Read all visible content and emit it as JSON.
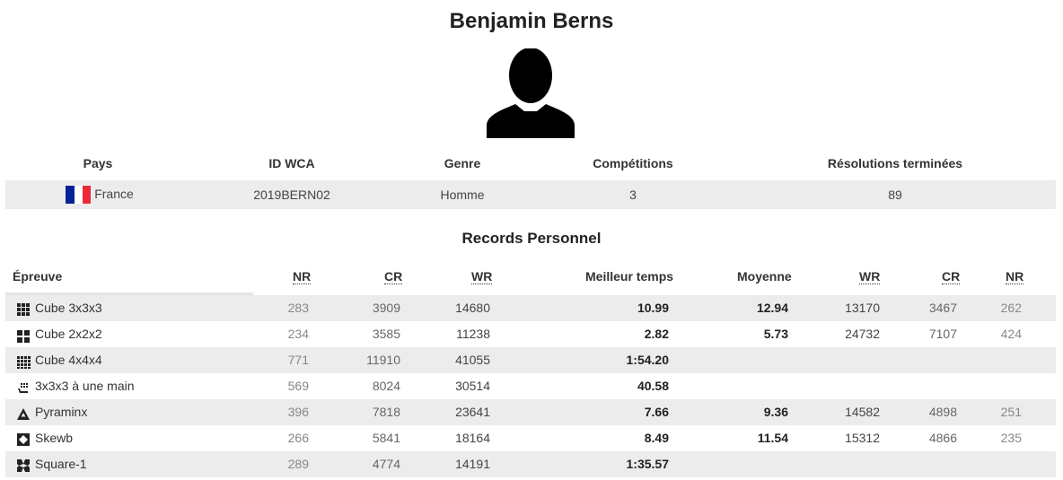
{
  "person": {
    "name": "Benjamin Berns",
    "avatar_icon": "person-silhouette-icon"
  },
  "info": {
    "headers": [
      "Pays",
      "ID WCA",
      "Genre",
      "Compétitions",
      "Résolutions terminées"
    ],
    "country": "France",
    "flag_colors": [
      "#002395",
      "#ffffff",
      "#ed2939"
    ],
    "wca_id": "2019BERN02",
    "gender": "Homme",
    "competitions": "3",
    "solves": "89"
  },
  "records": {
    "title": "Records Personnel",
    "headers": {
      "event": "Épreuve",
      "single_nr": "NR",
      "single_cr": "CR",
      "single_wr": "WR",
      "single": "Meilleur temps",
      "average": "Moyenne",
      "avg_wr": "WR",
      "avg_cr": "CR",
      "avg_nr": "NR"
    },
    "rows": [
      {
        "icon": "cube-3x3-icon",
        "event": "Cube 3x3x3",
        "nr": "283",
        "cr": "3909",
        "wr": "14680",
        "single": "10.99",
        "average": "12.94",
        "awr": "13170",
        "acr": "3467",
        "anr": "262"
      },
      {
        "icon": "cube-2x2-icon",
        "event": "Cube 2x2x2",
        "nr": "234",
        "cr": "3585",
        "wr": "11238",
        "single": "2.82",
        "average": "5.73",
        "awr": "24732",
        "acr": "7107",
        "anr": "424"
      },
      {
        "icon": "cube-4x4-icon",
        "event": "Cube 4x4x4",
        "nr": "771",
        "cr": "11910",
        "wr": "41055",
        "single": "1:54.20",
        "average": "",
        "awr": "",
        "acr": "",
        "anr": ""
      },
      {
        "icon": "one-hand-icon",
        "event": "3x3x3 à une main",
        "nr": "569",
        "cr": "8024",
        "wr": "30514",
        "single": "40.58",
        "average": "",
        "awr": "",
        "acr": "",
        "anr": ""
      },
      {
        "icon": "pyraminx-icon",
        "event": "Pyraminx",
        "nr": "396",
        "cr": "7818",
        "wr": "23641",
        "single": "7.66",
        "average": "9.36",
        "awr": "14582",
        "acr": "4898",
        "anr": "251"
      },
      {
        "icon": "skewb-icon",
        "event": "Skewb",
        "nr": "266",
        "cr": "5841",
        "wr": "18164",
        "single": "8.49",
        "average": "11.54",
        "awr": "15312",
        "acr": "4866",
        "anr": "235"
      },
      {
        "icon": "square-1-icon",
        "event": "Square-1",
        "nr": "289",
        "cr": "4774",
        "wr": "14191",
        "single": "1:35.57",
        "average": "",
        "awr": "",
        "acr": "",
        "anr": ""
      }
    ]
  }
}
